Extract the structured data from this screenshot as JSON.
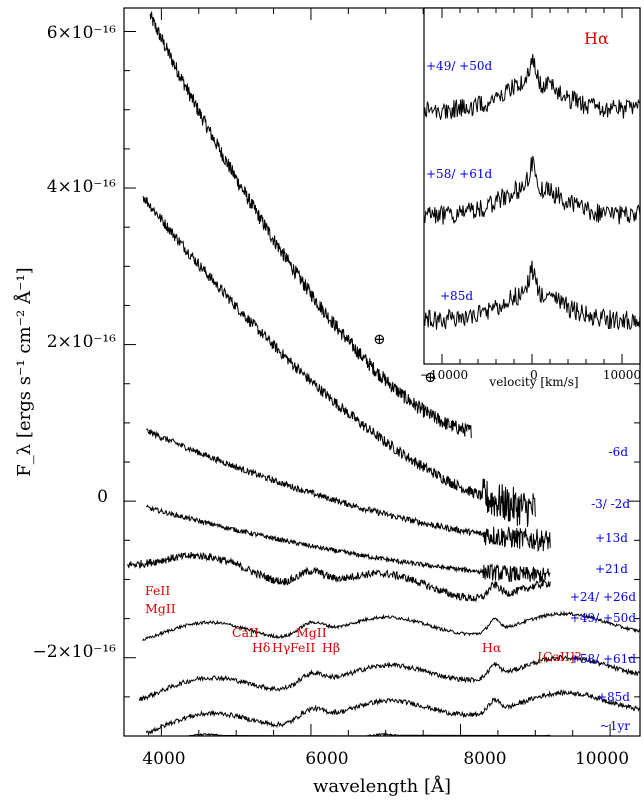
{
  "chart_data": {
    "type": "line",
    "main": {
      "xlabel": "wavelength [Å]",
      "ylabel": "F_λ [ergs s⁻¹ cm⁻² Å⁻¹]",
      "xlim": [
        3500,
        10400
      ],
      "ylim": [
        -3e-16,
        6.3e-16
      ],
      "xticks": [
        4000,
        6000,
        8000,
        10000
      ],
      "xtick_labels": [
        "4000",
        "6000",
        "8000",
        "10000"
      ],
      "yticks": [
        -2e-16,
        0,
        2e-16,
        4e-16,
        6e-16
      ],
      "ytick_labels": [
        "−2×10⁻¹⁶",
        "0",
        "2×10⁻¹⁶",
        "4×10⁻¹⁶",
        "6×10⁻¹⁶"
      ],
      "series": [
        {
          "name": "-6d",
          "wmin": 3850,
          "wmax": 8150,
          "y_start": 6.2e-16,
          "y_end": 9e-17,
          "noise": 9e-18
        },
        {
          "name": "-3/ -2d",
          "wmin": 3750,
          "wmax": 9000,
          "y_start": 3.9e-16,
          "y_end": -1e-17,
          "noise": 7e-18
        },
        {
          "name": "+13d",
          "wmin": 3800,
          "wmax": 9200,
          "y_start": 9e-17,
          "y_end": -5e-17,
          "noise": 4e-18
        },
        {
          "name": "+21d",
          "wmin": 3800,
          "wmax": 9200,
          "y_start": -8e-18,
          "y_end": -9.5e-17,
          "noise": 3e-18
        },
        {
          "name": "+24/ +26d",
          "wmin": 3550,
          "wmax": 9200,
          "y_start": -7e-17,
          "y_end": -1.15e-16,
          "noise": 5e-18
        },
        {
          "name": "+49/ +50d",
          "wmin": 3750,
          "wmax": 10400,
          "y_start": -1.7e-16,
          "y_end": -1.55e-16,
          "noise": 2e-18
        },
        {
          "name": "+58/ +61d",
          "wmin": 3700,
          "wmax": 10400,
          "y_start": -2.45e-16,
          "y_end": -2.1e-16,
          "noise": 3e-18
        },
        {
          "name": "+85d",
          "wmin": 3800,
          "wmax": 10400,
          "y_start": -2.9e-16,
          "y_end": -2.55e-16,
          "noise": 3e-18
        },
        {
          "name": "~1yr",
          "wmin": 3700,
          "wmax": 9200,
          "y_start": -3.1e-16,
          "y_end": -3.1e-16,
          "noise": 1e-18
        }
      ],
      "annotations": [
        {
          "text": "FeII",
          "wavelength": 4050
        },
        {
          "text": "MgII",
          "wavelength": 4050
        },
        {
          "text": "CaII",
          "wavelength": 5250
        },
        {
          "text": "Hδ",
          "wavelength": 5300
        },
        {
          "text": "MgII",
          "wavelength": 5950
        },
        {
          "text": "Hγ",
          "wavelength": 5750
        },
        {
          "text": "FeII",
          "wavelength": 6050
        },
        {
          "text": "Hβ",
          "wavelength": 6400
        },
        {
          "text": "Hα",
          "wavelength": 8450
        },
        {
          "text": "[CaII]?",
          "wavelength": 9700
        }
      ],
      "telluric_marks": [
        "⊕",
        "⊕"
      ]
    },
    "inset": {
      "title": "Hα",
      "xlabel": "velocity [km/s]",
      "xlim": [
        -12000,
        12000
      ],
      "xticks": [
        -10000,
        0,
        10000
      ],
      "xtick_labels": [
        "−10000",
        "0",
        "10000"
      ],
      "series": [
        {
          "name": "+49/ +50d"
        },
        {
          "name": "+58/ +61d"
        },
        {
          "name": "+85d"
        }
      ]
    }
  }
}
